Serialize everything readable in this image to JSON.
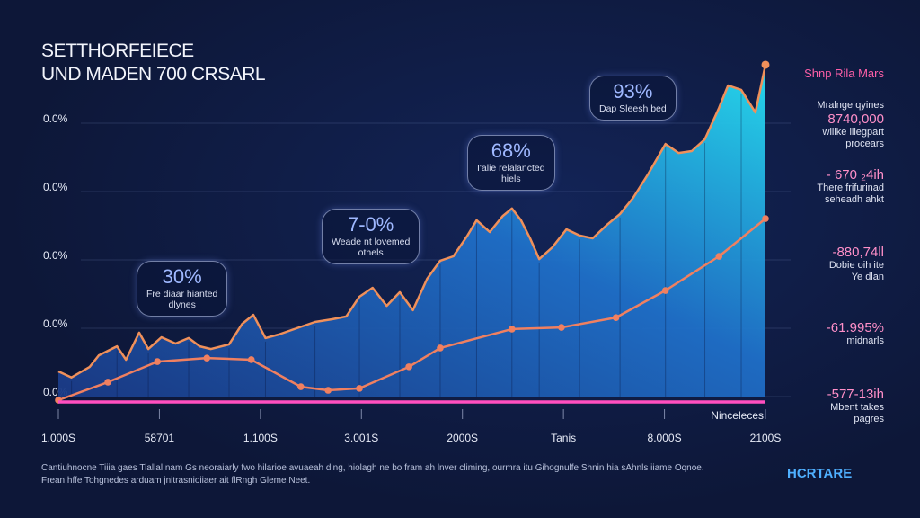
{
  "chart_data": {
    "type": "line",
    "title": [
      "SETTHORFEIECE",
      "UND MADEN 700 CRSARL"
    ],
    "xlim": [
      0,
      70
    ],
    "xticks": [
      {
        "value": 0,
        "label": "1.000S"
      },
      {
        "value": 10,
        "label": "58701"
      },
      {
        "value": 20,
        "label": "1.100S"
      },
      {
        "value": 30,
        "label": "3.001S"
      },
      {
        "value": 40,
        "label": "2000S"
      },
      {
        "value": 50,
        "label": "Tanis"
      },
      {
        "value": 60,
        "label": "8.000S"
      },
      {
        "value": 70,
        "label": "2100S"
      }
    ],
    "ylim": [
      0,
      125
    ],
    "yticks": [
      {
        "value": 0,
        "label": "0.0%"
      },
      {
        "value": 25,
        "label": "0.0%"
      },
      {
        "value": 50,
        "label": "0.0%"
      },
      {
        "value": 75,
        "label": "0.0%"
      },
      {
        "value": 100,
        "label": "0.0%"
      }
    ],
    "grid": true,
    "series": [
      {
        "color": "#f0905a",
        "area": true,
        "x": [
          0,
          1.3,
          3.1,
          4,
          5.8,
          6.7,
          8,
          8.9,
          10.2,
          11.6,
          12.9,
          14,
          15.1,
          16.9,
          18.2,
          19.3,
          20.5,
          21.8,
          23.6,
          25.4,
          27.1,
          28.5,
          29.8,
          31.1,
          32.5,
          33.8,
          35.1,
          36.5,
          37.8,
          39.1,
          40.5,
          41.4,
          42.7,
          44,
          44.9,
          45.8,
          46.7,
          47.6,
          48.9,
          50.3,
          51.6,
          52.9,
          54.3,
          55.6,
          56.9,
          58.3,
          60.1,
          61.4,
          62.7,
          64,
          65.4,
          66.3,
          67.6,
          69,
          70
        ],
        "values": [
          9.2,
          7,
          10.9,
          15.1,
          18.4,
          13.5,
          23.4,
          17.4,
          21.7,
          19.4,
          21.4,
          18.4,
          17.4,
          19.1,
          26.6,
          29.9,
          21.4,
          22.7,
          25,
          27.3,
          28.3,
          29.3,
          36.5,
          39.8,
          33.2,
          38.2,
          31.6,
          43.1,
          49.7,
          51.3,
          58.9,
          64.5,
          60.2,
          66.1,
          68.8,
          64.5,
          57.9,
          50.3,
          54.6,
          61.2,
          58.9,
          57.9,
          62.8,
          66.8,
          72.7,
          80.9,
          92.4,
          89.1,
          89.8,
          94.1,
          105.6,
          113.8,
          112.2,
          103.9,
          121.4
        ]
      },
      {
        "color": "#f08060",
        "area": false,
        "x": [
          0,
          4.9,
          9.8,
          14.7,
          19.1,
          24,
          26.7,
          29.8,
          34.7,
          37.8,
          44.9,
          49.8,
          55.2,
          60.1,
          65.4,
          70
        ],
        "values": [
          -1.3,
          5.3,
          12.8,
          14.1,
          13.5,
          3.6,
          2.3,
          3,
          10.9,
          17.8,
          24.7,
          25.3,
          28.9,
          38.8,
          51.3,
          65.1
        ]
      }
    ],
    "baseline_label": "Ninceleces",
    "annotations": [
      {
        "value": "30%",
        "text": "Fre diaar hianted\ndlynes"
      },
      {
        "value": "7-0%",
        "text": "Weade nt lovemed\nothels"
      },
      {
        "value": "68%",
        "text": "I'alie relalancted\nhiels"
      },
      {
        "value": "93%",
        "text": "Dap Sleesh bed"
      }
    ],
    "side_title": "Shnp Rila Mars",
    "side_subtitle": "Mralnge qyines",
    "side_items": [
      {
        "value": "8740,000",
        "text": "wiiike lliegpart\nprocears"
      },
      {
        "value": "- 670 ₂4ih",
        "text": "There frifurinad\nseheadh ahkt"
      },
      {
        "value": "-880,74ll",
        "text": "Dobie oih ite\nYe dlan"
      },
      {
        "value": "-61.995%",
        "text": "midnarls"
      },
      {
        "value": "-577-13ih",
        "text": "Mbent takes\npagres"
      }
    ],
    "footer": "Cantiuhnocne Tiiia gaes Tiallal nam Gs neoraiarly fwo hilarioe avuaeah ding, hiolagh ne bo fram ah lnver climing, ourmra itu Gihognulfe Shnin hia sAhnls iiame Oqnoe.\nFrean hffe Tohgnedes arduam jnitrasnioiiaer ait flRngh Gleme Neet.",
    "logo": "HCRTARE"
  }
}
